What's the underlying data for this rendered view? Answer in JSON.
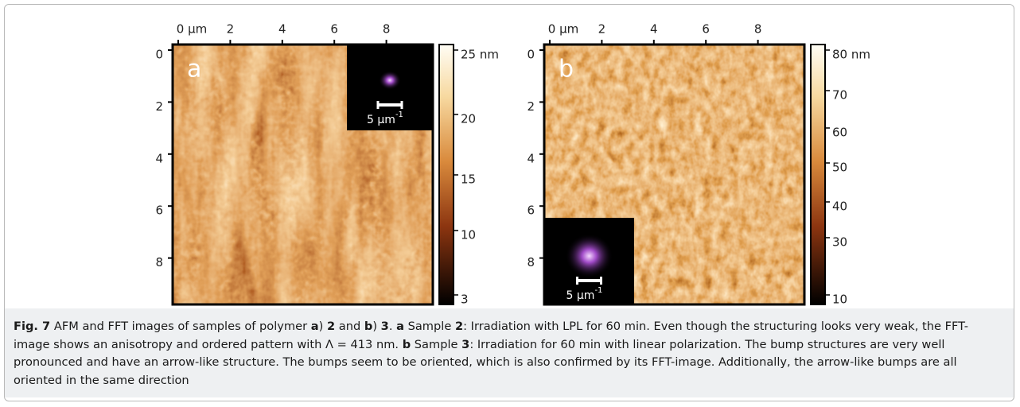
{
  "figure": {
    "panels": [
      {
        "label": "a",
        "x_ticks": [
          "0 µm",
          "2",
          "4",
          "6",
          "8"
        ],
        "y_ticks": [
          "0",
          "2",
          "4",
          "6",
          "8"
        ],
        "colorbar_ticks": [
          "25 nm",
          "20",
          "15",
          "10",
          "3"
        ],
        "inset_scale": "5 µm",
        "inset_exponent": "-1"
      },
      {
        "label": "b",
        "x_ticks": [
          "0 µm",
          "2",
          "4",
          "6",
          "8"
        ],
        "y_ticks": [
          "0",
          "2",
          "4",
          "6",
          "8"
        ],
        "colorbar_ticks": [
          "80 nm",
          "70",
          "60",
          "50",
          "40",
          "30",
          "10"
        ],
        "inset_scale": "5 µm",
        "inset_exponent": "-1"
      }
    ],
    "caption": [
      "Fig. 7",
      " AFM and FFT images of samples of polymer ",
      "a",
      ") ",
      "2",
      " and ",
      "b",
      ") ",
      "3",
      ". ",
      "a",
      " Sample ",
      "2",
      ": Irradiation with LPL for 60 min. Even though the structuring looks very weak, the FFT-image shows an anisotropy and ordered pattern with Λ = 413 nm. ",
      "b",
      " Sample ",
      "3",
      ": Irradiation for 60 min with linear polarization. The bump structures are very well pronounced and have an arrow-like structure. The bumps seem to be oriented, which is also confirmed by its FFT-image. Additionally, the arrow-like bumps are all oriented in the same direction"
    ]
  }
}
